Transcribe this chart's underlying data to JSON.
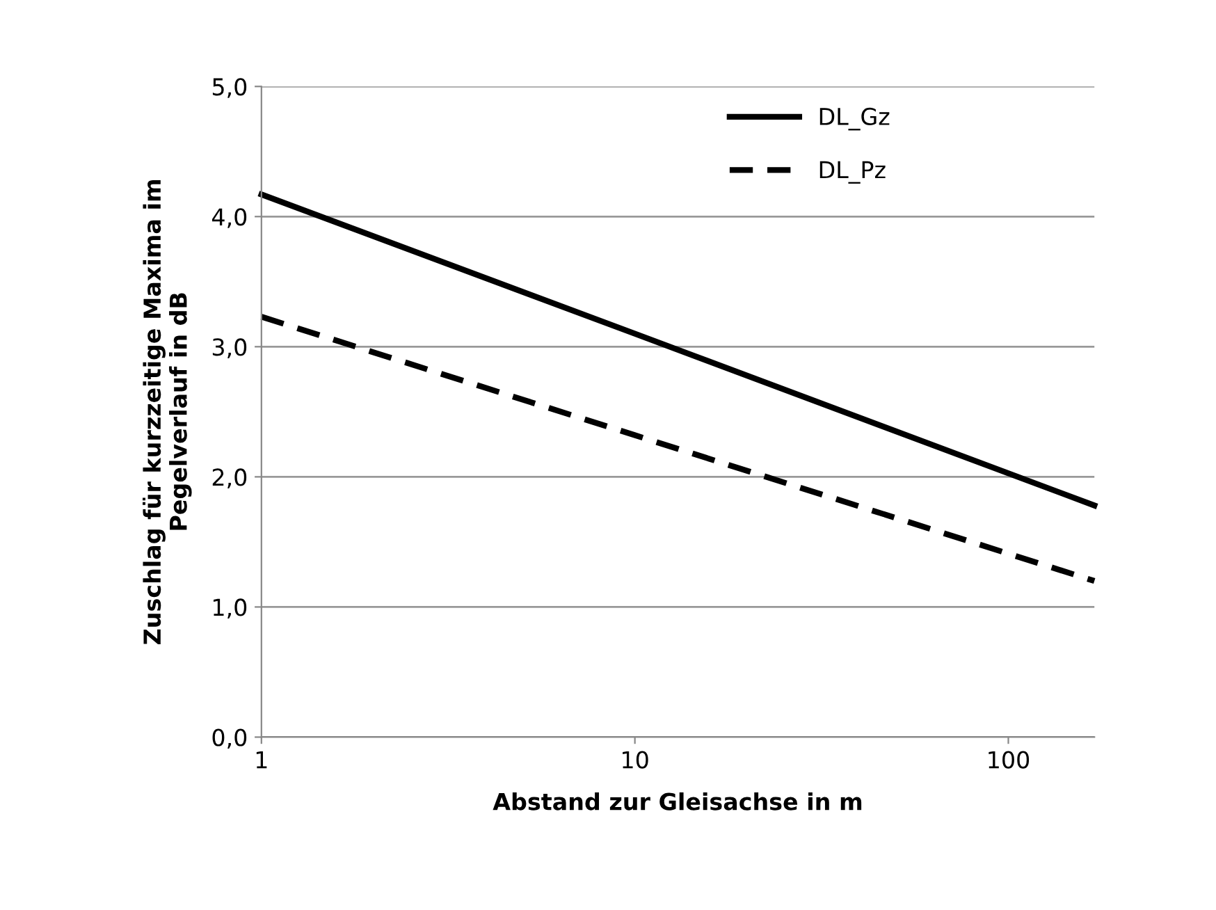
{
  "chart_data": {
    "type": "line",
    "xlabel": "Abstand zur Gleisachse in m",
    "ylabel": "Zuschlag für kurzzeitige Maxima im\nPegelverlauf in dB",
    "log": "x",
    "xlim": [
      1,
      170
    ],
    "xticks": [
      1,
      10,
      100
    ],
    "ylim": [
      0,
      5
    ],
    "yticks": [
      {
        "value": 0,
        "label": "0,0"
      },
      {
        "value": 1,
        "label": "1,0"
      },
      {
        "value": 2,
        "label": "2,0"
      },
      {
        "value": 3,
        "label": "3,0"
      },
      {
        "value": 4,
        "label": "4,0"
      },
      {
        "value": 5,
        "label": "5,0"
      }
    ],
    "grid": "y",
    "legend": "top right",
    "marker": "none",
    "series": [
      {
        "name": "DL_Gz",
        "color": "#000000",
        "x": [
          1,
          10,
          170
        ],
        "values": [
          4.17,
          3.1,
          1.78
        ],
        "line_style": "solid"
      },
      {
        "name": "DL_Pz",
        "color": "#000000",
        "x": [
          1,
          10,
          170
        ],
        "values": [
          3.23,
          2.32,
          1.2
        ],
        "line_style": "dashed"
      }
    ]
  }
}
